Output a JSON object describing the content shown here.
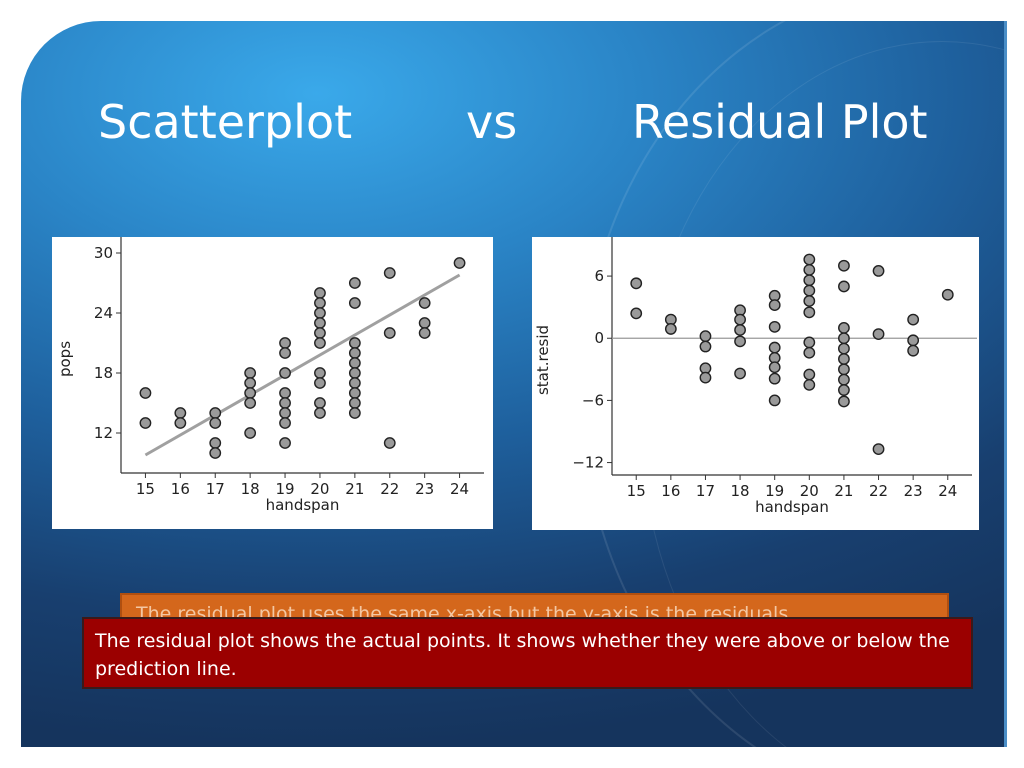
{
  "slide": {
    "title_left": "Scatterplot",
    "title_mid": "vs",
    "title_right": "Residual Plot",
    "orange_text": "The residual plot uses the same x-axis but the y-axis is the residuals",
    "red_text": "The residual plot shows the actual points. It shows whether they were above or below the prediction line.",
    "colors": {
      "orange_box": "#d4671c",
      "red_box": "#9b0000",
      "title": "#ffffff"
    }
  },
  "chart_data": [
    {
      "type": "scatter",
      "title": "",
      "xlabel": "handspan",
      "ylabel": "pops",
      "xlim": [
        14.3,
        24.7
      ],
      "ylim": [
        8.0,
        30.8
      ],
      "xticks": [
        15,
        16,
        17,
        18,
        19,
        20,
        21,
        22,
        23,
        24
      ],
      "yticks": [
        12,
        18,
        24,
        30
      ],
      "points": [
        [
          15,
          16
        ],
        [
          15,
          13
        ],
        [
          16,
          14
        ],
        [
          16,
          13
        ],
        [
          17,
          14
        ],
        [
          17,
          13
        ],
        [
          17,
          11
        ],
        [
          17,
          10
        ],
        [
          18,
          18
        ],
        [
          18,
          17
        ],
        [
          18,
          16
        ],
        [
          18,
          15
        ],
        [
          18,
          12
        ],
        [
          19,
          21
        ],
        [
          19,
          20
        ],
        [
          19,
          18
        ],
        [
          19,
          16
        ],
        [
          19,
          15
        ],
        [
          19,
          14
        ],
        [
          19,
          13
        ],
        [
          19,
          11
        ],
        [
          20,
          26
        ],
        [
          20,
          25
        ],
        [
          20,
          24
        ],
        [
          20,
          23
        ],
        [
          20,
          22
        ],
        [
          20,
          21
        ],
        [
          20,
          18
        ],
        [
          20,
          17
        ],
        [
          20,
          15
        ],
        [
          20,
          14
        ],
        [
          21,
          27
        ],
        [
          21,
          25
        ],
        [
          21,
          21
        ],
        [
          21,
          20
        ],
        [
          21,
          19
        ],
        [
          21,
          18
        ],
        [
          21,
          17
        ],
        [
          21,
          16
        ],
        [
          21,
          15
        ],
        [
          21,
          14
        ],
        [
          22,
          28
        ],
        [
          22,
          22
        ],
        [
          22,
          11
        ],
        [
          23,
          25
        ],
        [
          23,
          23
        ],
        [
          23,
          22
        ],
        [
          24,
          29
        ]
      ],
      "fit_line": {
        "x": [
          15,
          24
        ],
        "y": [
          9.8,
          27.8
        ],
        "color": "#a0a0a0"
      }
    },
    {
      "type": "scatter",
      "title": "",
      "xlabel": "handspan",
      "ylabel": "stat.resid",
      "xlim": [
        14.3,
        24.7
      ],
      "ylim": [
        -13.2,
        9.0
      ],
      "xticks": [
        15,
        16,
        17,
        18,
        19,
        20,
        21,
        22,
        23,
        24
      ],
      "yticks": [
        6,
        0,
        -6,
        -12
      ],
      "zero_line": 0,
      "points": [
        [
          15,
          5.3
        ],
        [
          15,
          2.4
        ],
        [
          16,
          1.8
        ],
        [
          16,
          0.9
        ],
        [
          17,
          0.2
        ],
        [
          17,
          -0.8
        ],
        [
          17,
          -2.9
        ],
        [
          17,
          -3.8
        ],
        [
          18,
          2.7
        ],
        [
          18,
          1.8
        ],
        [
          18,
          0.8
        ],
        [
          18,
          -0.3
        ],
        [
          18,
          -3.4
        ],
        [
          19,
          4.1
        ],
        [
          19,
          3.2
        ],
        [
          19,
          1.1
        ],
        [
          19,
          -0.9
        ],
        [
          19,
          -1.9
        ],
        [
          19,
          -2.8
        ],
        [
          19,
          -3.9
        ],
        [
          19,
          -6.0
        ],
        [
          20,
          7.6
        ],
        [
          20,
          6.6
        ],
        [
          20,
          5.6
        ],
        [
          20,
          4.6
        ],
        [
          20,
          3.6
        ],
        [
          20,
          2.5
        ],
        [
          20,
          -0.4
        ],
        [
          20,
          -1.4
        ],
        [
          20,
          -3.5
        ],
        [
          20,
          -4.5
        ],
        [
          21,
          7.0
        ],
        [
          21,
          5.0
        ],
        [
          21,
          1.0
        ],
        [
          21,
          0.0
        ],
        [
          21,
          -1.0
        ],
        [
          21,
          -2.0
        ],
        [
          21,
          -3.0
        ],
        [
          21,
          -4.0
        ],
        [
          21,
          -5.0
        ],
        [
          21,
          -6.1
        ],
        [
          22,
          6.5
        ],
        [
          22,
          0.4
        ],
        [
          22,
          -10.7
        ],
        [
          23,
          1.8
        ],
        [
          23,
          -0.2
        ],
        [
          23,
          -1.2
        ],
        [
          24,
          4.2
        ]
      ]
    }
  ]
}
